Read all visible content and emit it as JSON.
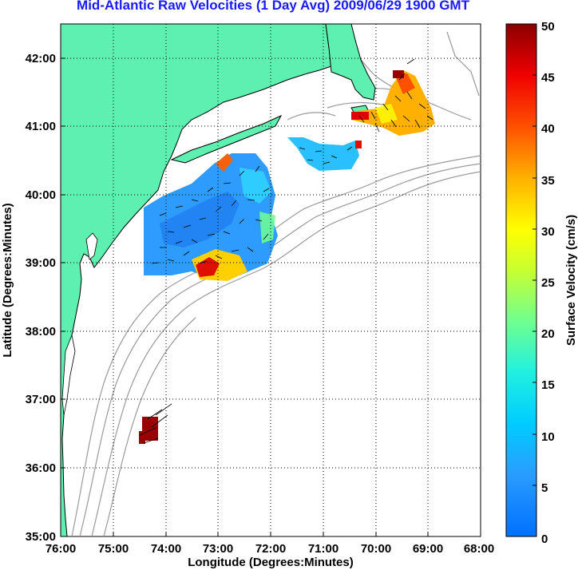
{
  "title": "Mid-Atlantic Raw Velocities (1 Day Avg) 2009/06/29 1900 GMT",
  "xlabel": "Longitude (Degrees:Minutes)",
  "ylabel": "Latitude (Degrees:Minutes)",
  "colorbar_label": "Surface Velocity (cm/s)",
  "x_ticks": [
    "76:00",
    "75:00",
    "74:00",
    "73:00",
    "72:00",
    "71:00",
    "70:00",
    "69:00",
    "68:00"
  ],
  "y_ticks": [
    "35:00",
    "36:00",
    "37:00",
    "38:00",
    "39:00",
    "40:00",
    "41:00",
    "42:00"
  ],
  "colorbar_ticks": [
    "0",
    "5",
    "10",
    "15",
    "20",
    "25",
    "30",
    "35",
    "40",
    "45",
    "50"
  ],
  "lon_range": [
    -76,
    -68
  ],
  "lat_range": [
    35,
    42.5
  ],
  "velocity_range": [
    0,
    50
  ],
  "colors": {
    "land": "#5ef0b0",
    "coast": "#000000",
    "bathymetry": "#9a9a9a",
    "title": "#1a1aff"
  },
  "grid": "dotted"
}
